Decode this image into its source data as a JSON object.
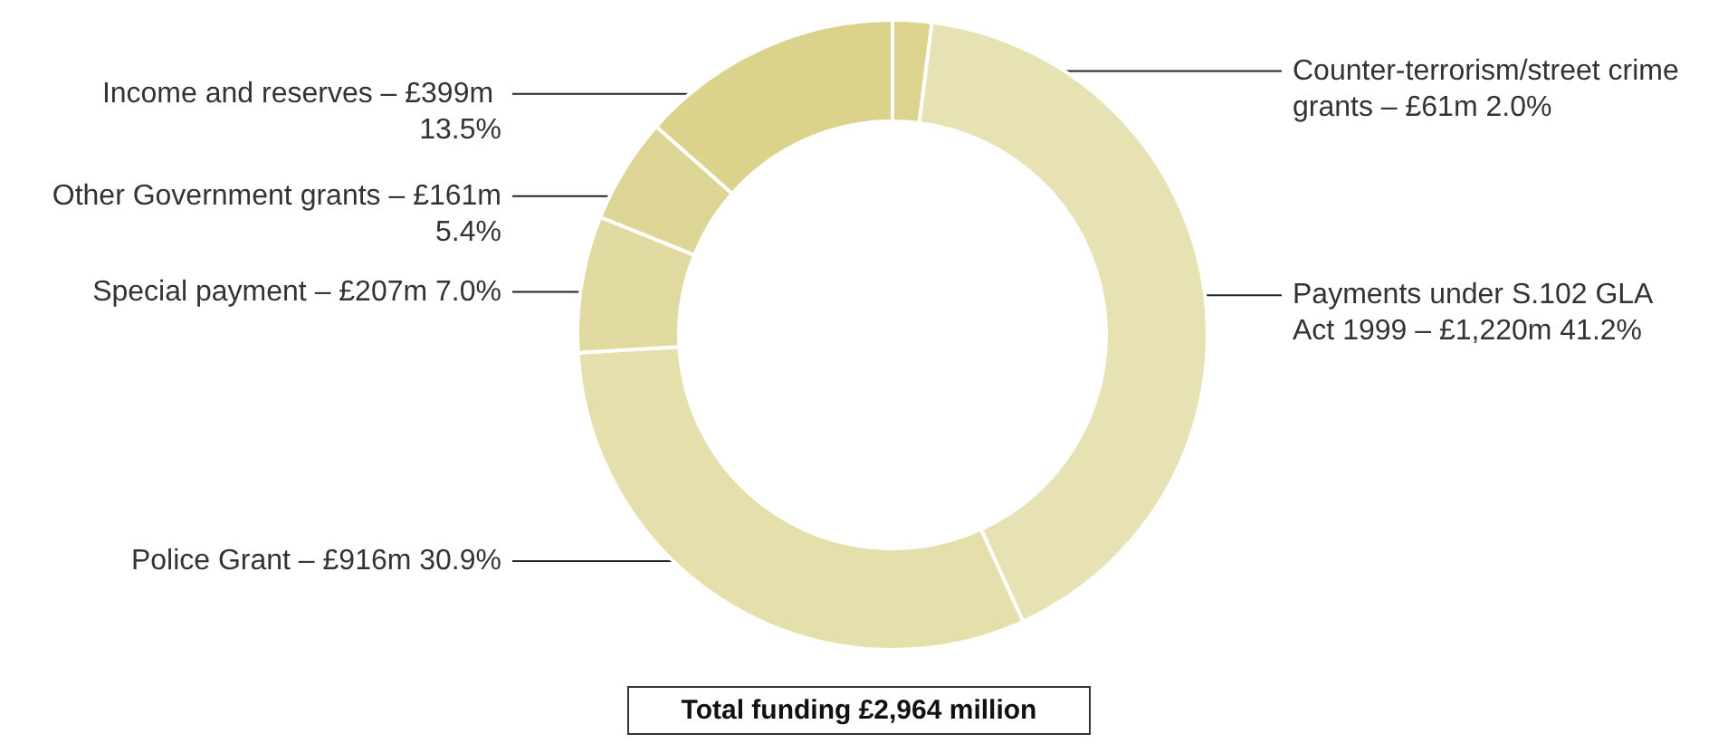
{
  "chart_data": {
    "type": "donut",
    "categories": [
      "Counter-terrorism/street crime grants – £61m 2.0%",
      "Payments under S.102 GLA Act 1999 – £1,220m 41.2%",
      "Police Grant – £916m 30.9%",
      "Special payment – £207m 7.0%",
      "Other Government grants – £161m 5.4%",
      "Income and reserves – £399m 13.5%"
    ],
    "values": [
      2.0,
      41.2,
      30.9,
      7.0,
      5.4,
      13.5
    ],
    "colors": [
      "#dcd38e",
      "#e6e2b4",
      "#e4dfab",
      "#e1daa0",
      "#ddd594",
      "#dbd28c"
    ],
    "annotations": [
      "Total funding £2,964 million"
    ],
    "legend": false
  }
}
